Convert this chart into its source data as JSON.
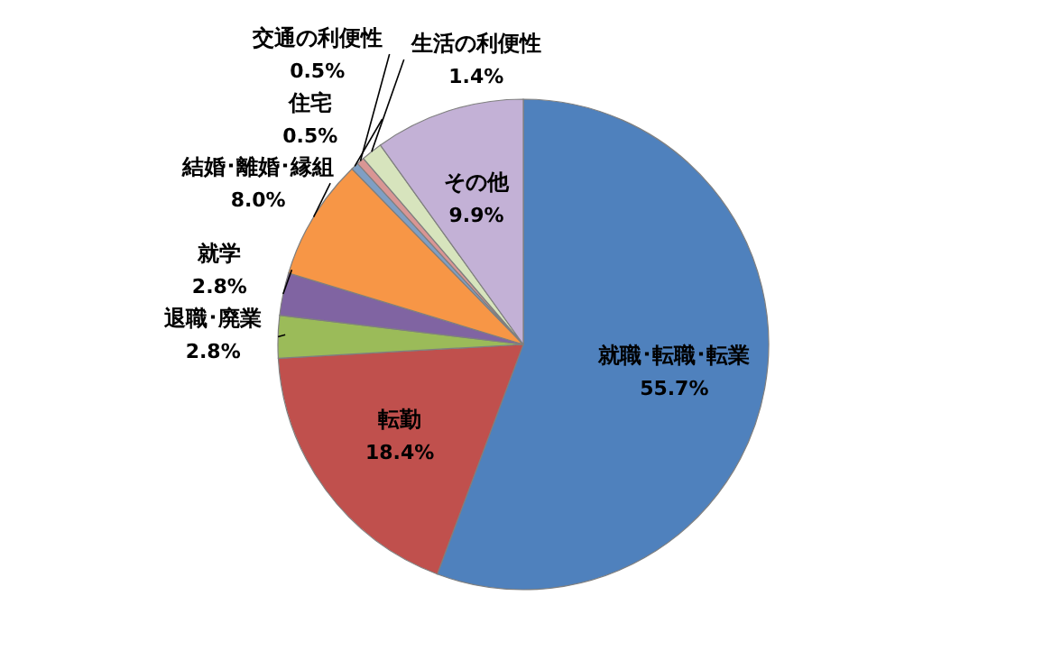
{
  "chart_data": {
    "type": "pie",
    "categories": [
      "就職･転職･転業",
      "転勤",
      "退職･廃業",
      "就学",
      "結婚･離婚･縁組",
      "住宅",
      "交通の利便性",
      "生活の利便性",
      "その他"
    ],
    "values": [
      55.7,
      18.4,
      2.8,
      2.8,
      8.0,
      0.5,
      0.5,
      1.4,
      9.9
    ],
    "colors": [
      "#4f81bd",
      "#c0504d",
      "#9bbb59",
      "#8064a2",
      "#f79646",
      "#7f9fc4",
      "#d99694",
      "#d7e4bd",
      "#c3b1d6"
    ],
    "value_labels": [
      "55.7%",
      "18.4%",
      "2.8%",
      "2.8%",
      "8.0%",
      "0.5%",
      "0.5%",
      "1.4%",
      "9.9%"
    ]
  }
}
